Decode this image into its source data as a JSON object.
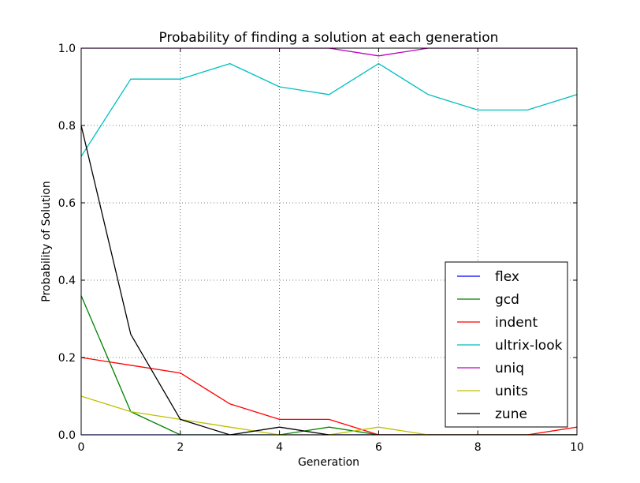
{
  "chart_data": {
    "type": "line",
    "title": "Probability of finding a solution at each generation",
    "xlabel": "Generation",
    "ylabel": "Probability of Solution",
    "xlim": [
      0,
      10
    ],
    "ylim": [
      0.0,
      1.0
    ],
    "xticks": [
      "0",
      "2",
      "4",
      "6",
      "8",
      "10"
    ],
    "yticks": [
      "0.0",
      "0.2",
      "0.4",
      "0.6",
      "0.8",
      "1.0"
    ],
    "grid": true,
    "legend_position": "lower-right",
    "x": [
      0,
      1,
      2,
      3,
      4,
      5,
      6,
      7,
      8,
      9,
      10
    ],
    "series": [
      {
        "name": "flex",
        "color": "#0000ff",
        "values": [
          0,
          0,
          0,
          0,
          0,
          0,
          0,
          0,
          0,
          0,
          0
        ]
      },
      {
        "name": "gcd",
        "color": "#008000",
        "values": [
          0.36,
          0.06,
          0,
          0,
          0,
          0.02,
          0,
          0,
          0,
          0,
          0
        ]
      },
      {
        "name": "indent",
        "color": "#ff0000",
        "values": [
          0.2,
          0.18,
          0.16,
          0.08,
          0.04,
          0.04,
          0,
          0,
          0,
          0,
          0.02
        ]
      },
      {
        "name": "ultrix-look",
        "color": "#00bfbf",
        "values": [
          0.72,
          0.92,
          0.92,
          0.96,
          0.9,
          0.88,
          0.96,
          0.88,
          0.84,
          0.84,
          0.88
        ]
      },
      {
        "name": "uniq",
        "color": "#bf00bf",
        "values": [
          1.0,
          1.0,
          1.0,
          1.0,
          1.0,
          1.0,
          0.98,
          1.0,
          1.0,
          1.0,
          1.0
        ]
      },
      {
        "name": "units",
        "color": "#bfbf00",
        "values": [
          0.1,
          0.06,
          0.04,
          0.02,
          0,
          0,
          0.02,
          0,
          0,
          0,
          0
        ]
      },
      {
        "name": "zune",
        "color": "#000000",
        "values": [
          0.8,
          0.26,
          0.04,
          0,
          0.02,
          0,
          0,
          0,
          0,
          0,
          0
        ]
      }
    ]
  }
}
